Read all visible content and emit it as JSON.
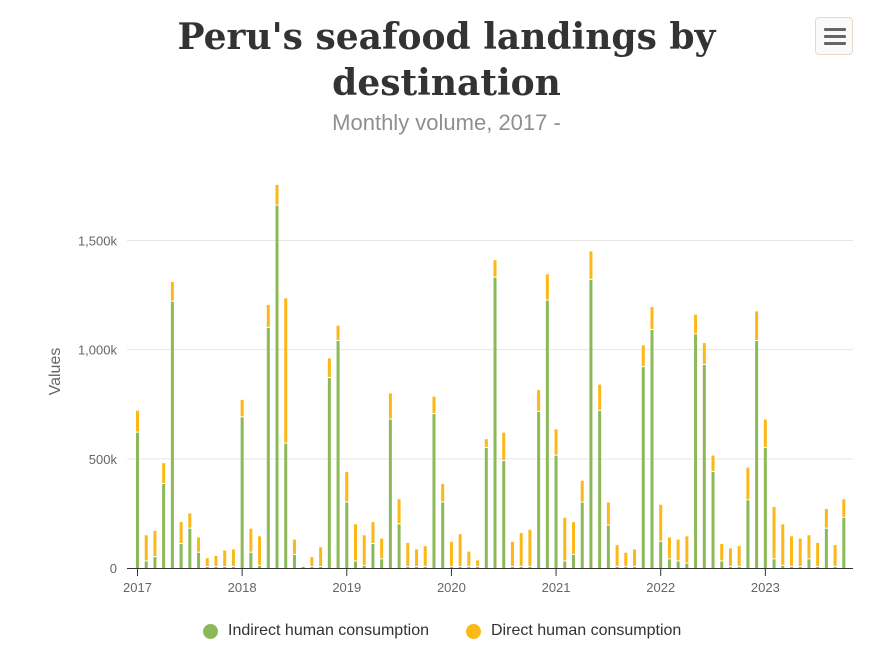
{
  "header": {
    "title_line1": "Peru's seafood landings by",
    "title_line2": "destination",
    "subtitle": "Monthly volume, 2017 -"
  },
  "menu": {
    "icon": "hamburger-menu-icon"
  },
  "colors": {
    "indirect": "#8cb958",
    "direct": "#fbb817",
    "grid": "#e6e6e6",
    "axis": "#333333"
  },
  "chart_data": {
    "type": "bar",
    "stacked": true,
    "title": "Peru's seafood landings by destination",
    "subtitle": "Monthly volume, 2017 -",
    "ylabel": "Values",
    "ylim": [
      0,
      1800000
    ],
    "yticks": [
      0,
      500000,
      1000000,
      1500000
    ],
    "ytick_labels": [
      "0",
      "500k",
      "1,000k",
      "1,500k"
    ],
    "xtick_labels": [
      "2017",
      "2018",
      "2019",
      "2020",
      "2021",
      "2022",
      "2023"
    ],
    "start": "2017-01",
    "grid": true,
    "legend_position": "bottom-center",
    "series": [
      {
        "name": "Indirect human consumption",
        "values": [
          620000,
          30000,
          50000,
          385000,
          1220000,
          110000,
          180000,
          70000,
          5000,
          5000,
          5000,
          5000,
          690000,
          70000,
          10000,
          1100000,
          1660000,
          570000,
          60000,
          5000,
          5000,
          5000,
          870000,
          1040000,
          300000,
          30000,
          10000,
          110000,
          40000,
          680000,
          200000,
          5000,
          5000,
          5000,
          705000,
          300000,
          5000,
          5000,
          5000,
          5000,
          550000,
          1330000,
          490000,
          5000,
          5000,
          5000,
          715000,
          1225000,
          515000,
          30000,
          60000,
          300000,
          1320000,
          720000,
          195000,
          5000,
          5000,
          5000,
          920000,
          1090000,
          120000,
          40000,
          30000,
          20000,
          1070000,
          930000,
          440000,
          30000,
          5000,
          5000,
          310000,
          1040000,
          550000,
          40000,
          10000,
          5000,
          5000,
          40000,
          5000,
          180000,
          5000,
          230000
        ],
        "color": "#8cb958"
      },
      {
        "name": "Direct human consumption",
        "values": [
          100000,
          120000,
          120000,
          95000,
          90000,
          100000,
          70000,
          70000,
          40000,
          50000,
          75000,
          80000,
          80000,
          110000,
          135000,
          105000,
          95000,
          665000,
          70000,
          5000,
          45000,
          90000,
          90000,
          70000,
          140000,
          170000,
          140000,
          100000,
          95000,
          120000,
          115000,
          110000,
          80000,
          95000,
          80000,
          85000,
          115000,
          150000,
          70000,
          30000,
          40000,
          80000,
          130000,
          115000,
          155000,
          170000,
          100000,
          120000,
          120000,
          200000,
          150000,
          100000,
          130000,
          120000,
          105000,
          100000,
          65000,
          80000,
          100000,
          105000,
          170000,
          100000,
          100000,
          125000,
          90000,
          100000,
          75000,
          80000,
          85000,
          95000,
          150000,
          135000,
          130000,
          240000,
          190000,
          140000,
          130000,
          110000,
          110000,
          90000,
          100000,
          85000
        ],
        "color": "#fbb817"
      }
    ]
  },
  "legend": [
    {
      "label": "Indirect human consumption",
      "color": "#8cb958"
    },
    {
      "label": "Direct human consumption",
      "color": "#fbb817"
    }
  ]
}
